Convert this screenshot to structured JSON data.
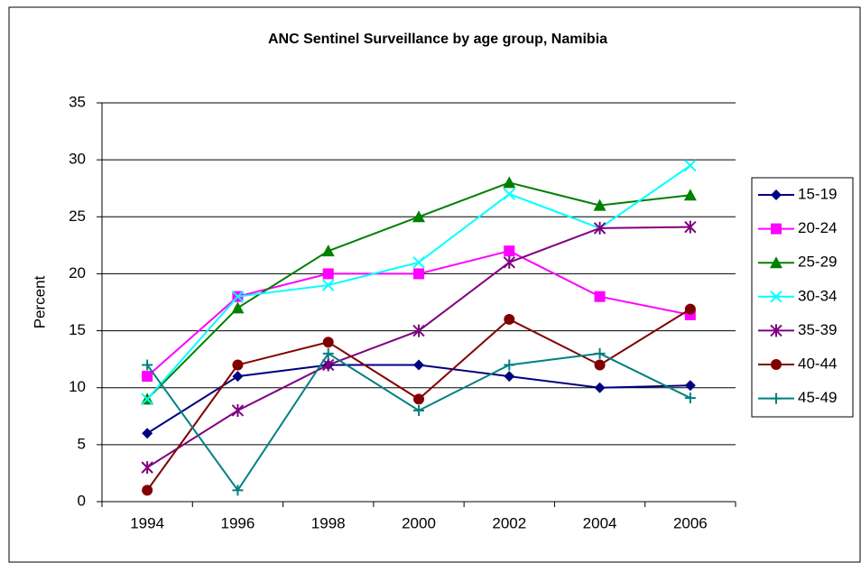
{
  "chart_data": {
    "type": "line",
    "title": "ANC Sentinel Surveillance by age group, Namibia",
    "y_label": "Percent",
    "categories": [
      "1994",
      "1996",
      "1998",
      "2000",
      "2002",
      "2004",
      "2006"
    ],
    "series": [
      {
        "name": "15-19",
        "color": "#000080",
        "marker": "diamond",
        "values": [
          6,
          11,
          12,
          12,
          11,
          10,
          10.2
        ]
      },
      {
        "name": "20-24",
        "color": "#ff00ff",
        "marker": "square",
        "values": [
          11,
          18,
          20,
          20,
          22,
          18,
          16.4
        ]
      },
      {
        "name": "25-29",
        "color": "#008000",
        "marker": "triangle",
        "values": [
          9,
          17,
          22,
          25,
          28,
          26,
          26.9
        ]
      },
      {
        "name": "30-34",
        "color": "#00ffff",
        "marker": "x",
        "values": [
          9,
          18,
          19,
          21,
          27,
          24,
          29.5
        ]
      },
      {
        "name": "35-39",
        "color": "#800080",
        "marker": "star",
        "values": [
          3,
          8,
          12,
          15,
          21,
          24,
          24.1
        ]
      },
      {
        "name": "40-44",
        "color": "#800000",
        "marker": "circle",
        "values": [
          1,
          12,
          14,
          9,
          16,
          12,
          16.9
        ]
      },
      {
        "name": "45-49",
        "color": "#008080",
        "marker": "plus",
        "values": [
          12,
          1,
          13,
          8,
          12,
          13,
          9.1
        ]
      }
    ],
    "ylim": [
      0,
      35
    ],
    "yticks": [
      0,
      5,
      10,
      15,
      20,
      25,
      30,
      35
    ],
    "grid": true,
    "legend": "right"
  }
}
